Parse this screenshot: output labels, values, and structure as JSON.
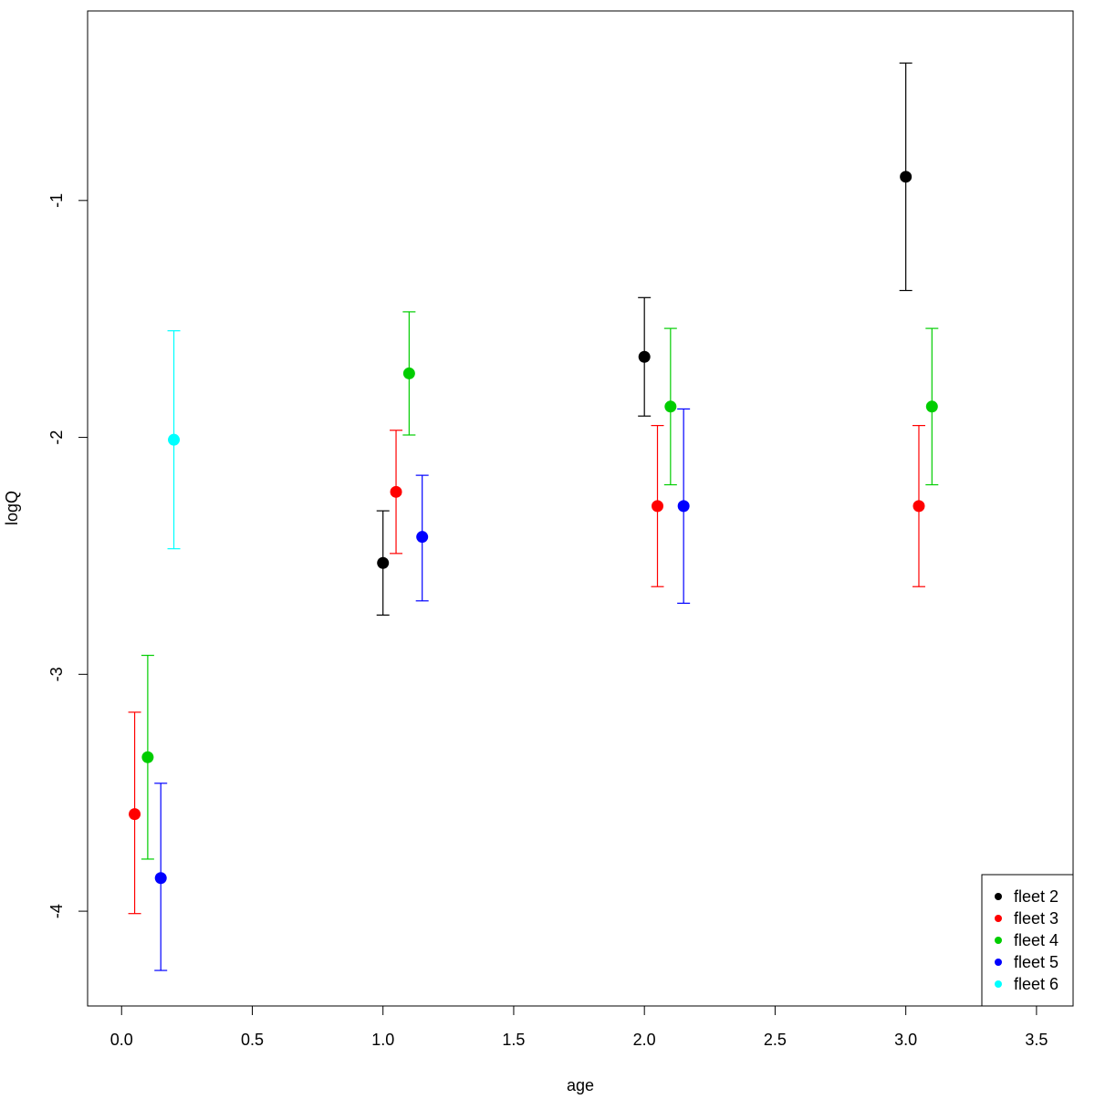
{
  "chart_data": {
    "type": "scatter",
    "title": "",
    "xlabel": "age",
    "ylabel": "logQ",
    "xlim": [
      -0.13,
      3.64
    ],
    "ylim": [
      -4.4,
      -0.2
    ],
    "x_ticks": [
      0.0,
      0.5,
      1.0,
      1.5,
      2.0,
      2.5,
      3.0,
      3.5
    ],
    "x_tick_labels": [
      "0.0",
      "0.5",
      "1.0",
      "1.5",
      "2.0",
      "2.5",
      "3.0",
      "3.5"
    ],
    "y_ticks": [
      -4,
      -3,
      -2,
      -1
    ],
    "y_tick_labels": [
      "-4",
      "-3",
      "-2",
      "-1"
    ],
    "grid": false,
    "legend_position": "bottom-right",
    "series": [
      {
        "name": "fleet 2",
        "color": "#000000",
        "points": [
          {
            "x": 1.0,
            "y": -2.53,
            "lo": -2.75,
            "hi": -2.31
          },
          {
            "x": 2.0,
            "y": -1.66,
            "lo": -1.91,
            "hi": -1.41
          },
          {
            "x": 3.0,
            "y": -0.9,
            "lo": -1.38,
            "hi": -0.42
          }
        ]
      },
      {
        "name": "fleet 3",
        "color": "#ff0000",
        "points": [
          {
            "x": 0.05,
            "y": -3.59,
            "lo": -4.01,
            "hi": -3.16
          },
          {
            "x": 1.05,
            "y": -2.23,
            "lo": -2.49,
            "hi": -1.97
          },
          {
            "x": 2.05,
            "y": -2.29,
            "lo": -2.63,
            "hi": -1.95
          },
          {
            "x": 3.05,
            "y": -2.29,
            "lo": -2.63,
            "hi": -1.95
          }
        ]
      },
      {
        "name": "fleet 4",
        "color": "#00cd00",
        "points": [
          {
            "x": 0.1,
            "y": -3.35,
            "lo": -3.78,
            "hi": -2.92
          },
          {
            "x": 1.1,
            "y": -1.73,
            "lo": -1.99,
            "hi": -1.47
          },
          {
            "x": 2.1,
            "y": -1.87,
            "lo": -2.2,
            "hi": -1.54
          },
          {
            "x": 3.1,
            "y": -1.87,
            "lo": -2.2,
            "hi": -1.54
          }
        ]
      },
      {
        "name": "fleet 5",
        "color": "#0000ff",
        "points": [
          {
            "x": 0.15,
            "y": -3.86,
            "lo": -4.25,
            "hi": -3.46
          },
          {
            "x": 1.15,
            "y": -2.42,
            "lo": -2.69,
            "hi": -2.16
          },
          {
            "x": 2.15,
            "y": -2.29,
            "lo": -2.7,
            "hi": -1.88
          }
        ]
      },
      {
        "name": "fleet 6",
        "color": "#00ffff",
        "points": [
          {
            "x": 0.2,
            "y": -2.01,
            "lo": -2.47,
            "hi": -1.55
          }
        ]
      }
    ]
  }
}
